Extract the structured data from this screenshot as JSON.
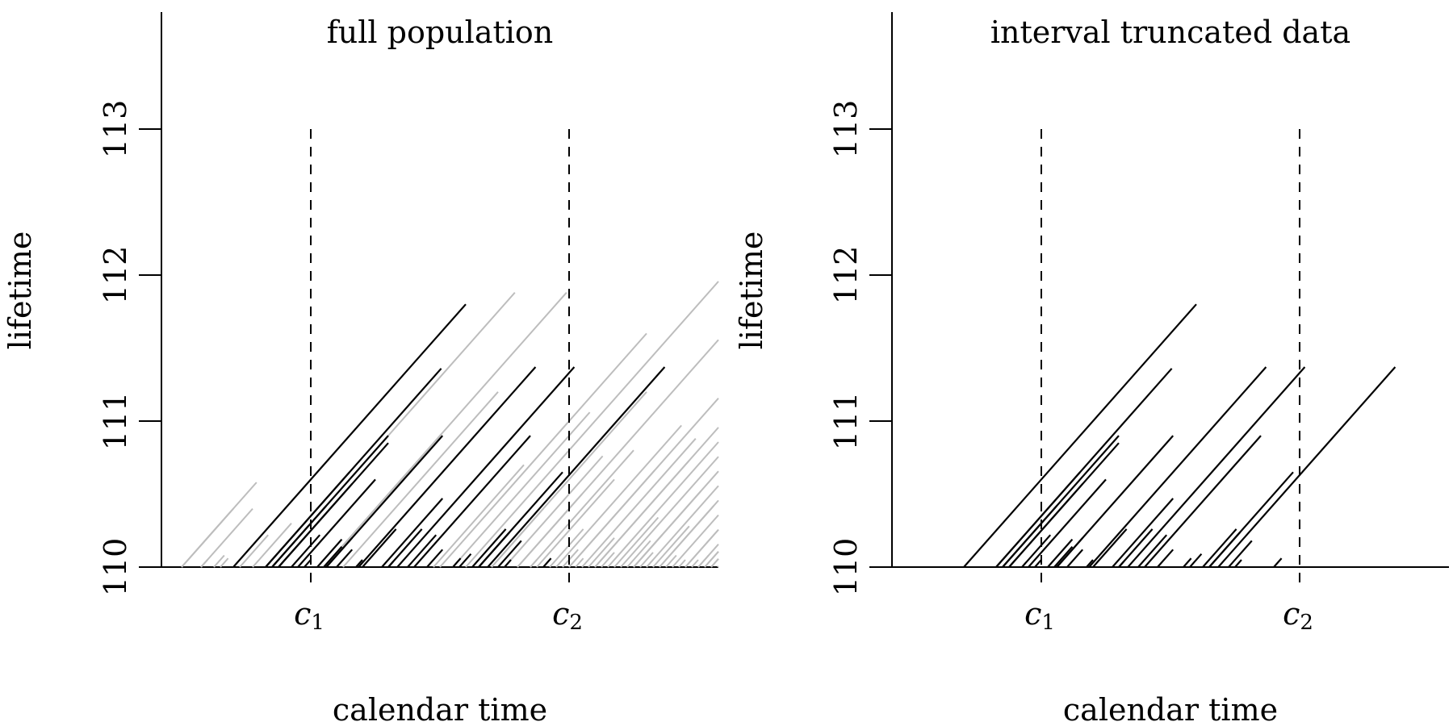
{
  "chart_data": [
    {
      "type": "line",
      "title": "full population",
      "xlabel": "calendar time",
      "ylabel": "lifetime",
      "x_range": [
        -1.0,
        3.3
      ],
      "ylim": [
        110,
        113.8
      ],
      "y_ticks": [
        "110",
        "111",
        "112",
        "113"
      ],
      "y_tick_values": [
        110,
        111,
        112,
        113
      ],
      "reference_lines": [
        {
          "label": "c",
          "sub": "1",
          "x": 0
        },
        {
          "label": "c",
          "sub": "2",
          "x": 2
        }
      ],
      "colors": {
        "observed": "#000000",
        "unobserved": "#bdbdbd"
      },
      "series": [
        {
          "group": "observed",
          "segments": [
            [
              -0.6,
              1.8
            ],
            [
              -0.35,
              1.36
            ],
            [
              0.37,
              1.37
            ],
            [
              0.67,
              1.37
            ],
            [
              1.37,
              1.37
            ],
            [
              -0.25,
              0.85
            ],
            [
              -0.3,
              0.9
            ],
            [
              0.12,
              0.9
            ],
            [
              -0.1,
              0.6
            ],
            [
              0.8,
              0.9
            ],
            [
              1.3,
              0.65
            ],
            [
              -0.35,
              0.65
            ],
            [
              -0.25,
              0.57
            ],
            [
              -0.3,
              0.42
            ],
            [
              0.55,
              0.47
            ],
            [
              0.6,
              0.26
            ],
            [
              -0.15,
              0.22
            ],
            [
              0.05,
              0.19
            ],
            [
              0.12,
              0.2
            ],
            [
              0.4,
              0.26
            ],
            [
              0.75,
              0.22
            ],
            [
              1.25,
              0.26
            ],
            [
              1.3,
              0.24
            ],
            [
              1.45,
              0.18
            ],
            [
              1.8,
              0.06
            ],
            [
              0.1,
              0.14
            ],
            [
              0.2,
              0.12
            ],
            [
              0.9,
              0.12
            ],
            [
              1.15,
              0.09
            ],
            [
              1.5,
              0.05
            ],
            [
              0.35,
              0.05
            ],
            [
              0.6,
              0.04
            ],
            [
              -0.05,
              0.05
            ],
            [
              1.1,
              0.06
            ]
          ]
        },
        {
          "group": "unobserved",
          "segments": [
            [
              -1.0,
              0.58
            ],
            [
              -1.0,
              0.4
            ],
            [
              -0.85,
              0.4
            ],
            [
              -0.6,
              0.74
            ],
            [
              -0.7,
              0.06
            ],
            [
              -0.45,
              0.3
            ],
            [
              -0.55,
              0.22
            ],
            [
              -0.35,
              0.1
            ],
            [
              -0.75,
              0.08
            ],
            [
              -0.85,
              0.05
            ],
            [
              -0.3,
              1.88
            ],
            [
              0.1,
              1.88
            ],
            [
              1.2,
              2.6
            ],
            [
              0.25,
              1.2
            ],
            [
              1.0,
              1.6
            ],
            [
              1.4,
              1.2
            ],
            [
              2.2,
              2.22
            ],
            [
              2.5,
              1.86
            ],
            [
              1.6,
              1.72
            ],
            [
              2.0,
              1.4
            ],
            [
              1.1,
              1.06
            ],
            [
              2.6,
              1.42
            ],
            [
              2.7,
              1.15
            ],
            [
              1.9,
              0.97
            ],
            [
              2.3,
              0.98
            ],
            [
              0.95,
              0.7
            ],
            [
              1.7,
              0.8
            ],
            [
              2.1,
              0.88
            ],
            [
              2.4,
              0.85
            ],
            [
              2.9,
              0.86
            ],
            [
              1.5,
              0.76
            ],
            [
              1.75,
              0.6
            ],
            [
              2.0,
              0.66
            ],
            [
              2.2,
              0.73
            ],
            [
              2.8,
              0.62
            ],
            [
              3.0,
              0.6
            ],
            [
              1.6,
              0.5
            ],
            [
              2.5,
              0.52
            ],
            [
              3.1,
              0.52
            ],
            [
              2.7,
              0.42
            ],
            [
              3.05,
              0.42
            ],
            [
              2.35,
              0.34
            ],
            [
              2.65,
              0.28
            ],
            [
              2.9,
              0.3
            ],
            [
              3.15,
              0.35
            ],
            [
              3.2,
              0.25
            ],
            [
              1.85,
              0.26
            ],
            [
              2.15,
              0.2
            ],
            [
              2.45,
              0.18
            ],
            [
              3.1,
              0.17
            ],
            [
              1.95,
              0.12
            ],
            [
              2.25,
              0.1
            ],
            [
              2.55,
              0.1
            ],
            [
              2.75,
              0.08
            ],
            [
              3.0,
              0.08
            ],
            [
              3.2,
              0.12
            ],
            [
              2.05,
              0.06
            ],
            [
              2.6,
              0.05
            ],
            [
              2.85,
              0.05
            ],
            [
              1.7,
              0.05
            ],
            [
              3.25,
              0.06
            ],
            [
              2.95,
              0.05
            ],
            [
              3.05,
              0.2
            ],
            [
              2.5,
              0.22
            ],
            [
              1.4,
              0.4
            ]
          ]
        }
      ]
    },
    {
      "type": "line",
      "title": "interval truncated data",
      "xlabel": "calendar time",
      "ylabel": "lifetime",
      "x_range": [
        -1.0,
        3.3
      ],
      "ylim": [
        110,
        113.8
      ],
      "y_ticks": [
        "110",
        "111",
        "112",
        "113"
      ],
      "y_tick_values": [
        110,
        111,
        112,
        113
      ],
      "reference_lines": [
        {
          "label": "c",
          "sub": "1",
          "x": 0
        },
        {
          "label": "c",
          "sub": "2",
          "x": 2
        }
      ],
      "colors": {
        "observed": "#000000"
      },
      "series": [
        {
          "group": "observed",
          "segments": [
            [
              -0.6,
              1.8
            ],
            [
              -0.35,
              1.36
            ],
            [
              0.37,
              1.37
            ],
            [
              0.67,
              1.37
            ],
            [
              1.37,
              1.37
            ],
            [
              -0.25,
              0.85
            ],
            [
              -0.3,
              0.9
            ],
            [
              0.12,
              0.9
            ],
            [
              -0.1,
              0.6
            ],
            [
              0.8,
              0.9
            ],
            [
              1.3,
              0.65
            ],
            [
              -0.35,
              0.65
            ],
            [
              -0.25,
              0.57
            ],
            [
              -0.3,
              0.42
            ],
            [
              0.55,
              0.47
            ],
            [
              0.6,
              0.26
            ],
            [
              -0.15,
              0.22
            ],
            [
              0.05,
              0.19
            ],
            [
              0.12,
              0.2
            ],
            [
              0.4,
              0.26
            ],
            [
              0.75,
              0.22
            ],
            [
              1.25,
              0.26
            ],
            [
              1.3,
              0.24
            ],
            [
              1.45,
              0.18
            ],
            [
              1.8,
              0.06
            ],
            [
              0.1,
              0.14
            ],
            [
              0.2,
              0.12
            ],
            [
              0.9,
              0.12
            ],
            [
              1.15,
              0.09
            ],
            [
              1.5,
              0.05
            ],
            [
              0.35,
              0.05
            ],
            [
              0.6,
              0.04
            ],
            [
              -0.05,
              0.05
            ],
            [
              1.1,
              0.06
            ]
          ]
        }
      ]
    }
  ]
}
